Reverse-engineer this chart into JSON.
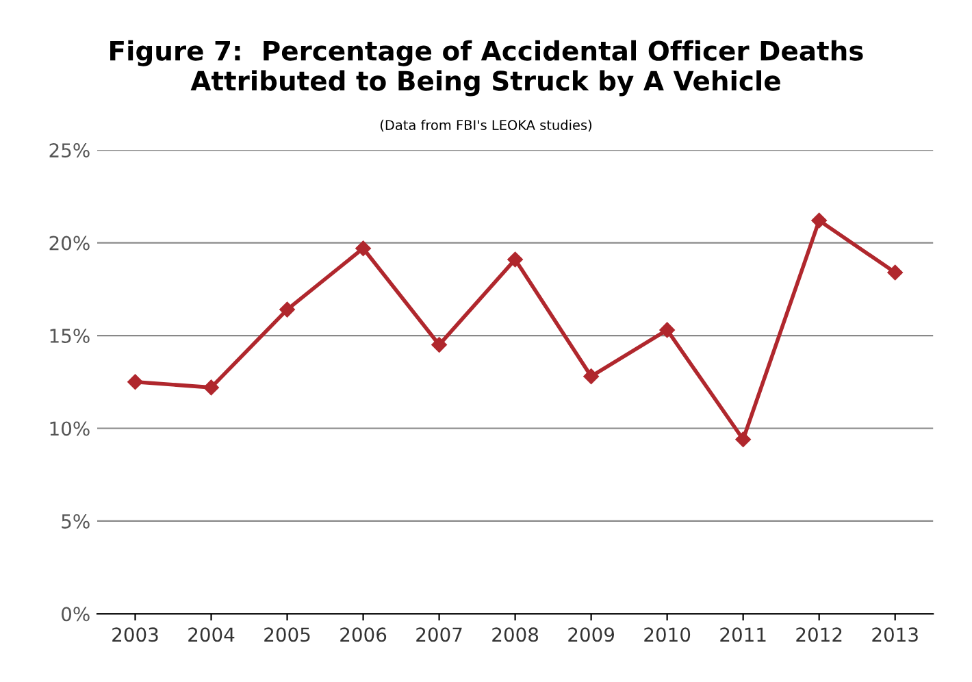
{
  "chart_data": {
    "type": "line",
    "title": "Figure 7:  Percentage of Accidental Officer Deaths\nAttributed to Being Struck by A Vehicle",
    "subtitle": "(Data from FBI's LEOKA studies)",
    "categories": [
      "2003",
      "2004",
      "2005",
      "2006",
      "2007",
      "2008",
      "2009",
      "2010",
      "2011",
      "2012",
      "2013"
    ],
    "series": [
      {
        "color": "#b0272d",
        "values": [
          12.5,
          12.2,
          16.4,
          19.7,
          14.5,
          19.1,
          12.8,
          15.3,
          9.4,
          21.2,
          18.4
        ]
      }
    ],
    "ylim": [
      0,
      25
    ],
    "yticks": [
      {
        "value": 0,
        "label": "0%"
      },
      {
        "value": 5,
        "label": "5%"
      },
      {
        "value": 10,
        "label": "10%"
      },
      {
        "value": 15,
        "label": "15%"
      },
      {
        "value": 20,
        "label": "20%"
      },
      {
        "value": 25,
        "label": "25%"
      }
    ],
    "grid": "y",
    "marker": "diamond",
    "line_style": "solid",
    "legend": false
  }
}
